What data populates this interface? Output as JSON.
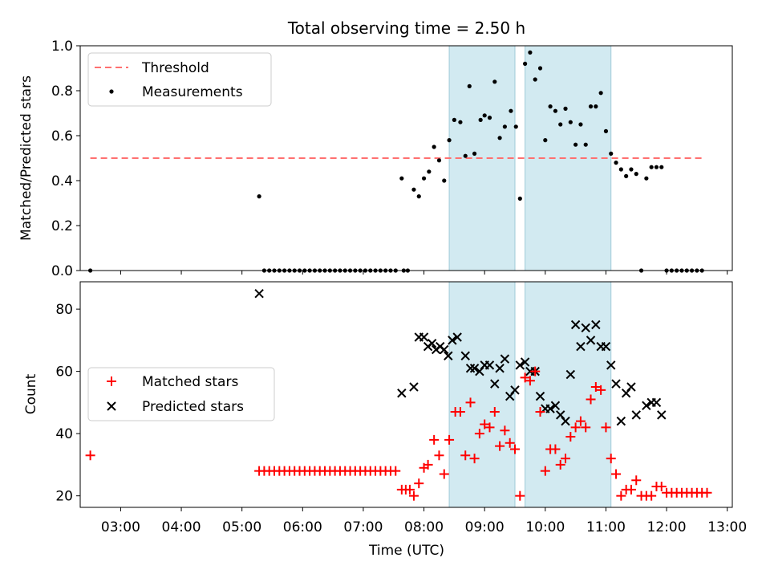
{
  "figure_title": "Total observing time = 2.50 h",
  "colors": {
    "threshold": "#ff7070",
    "measurement": "#000000",
    "matched": "#ff0000",
    "predicted": "#000000",
    "shade": "#add8e6"
  },
  "chart_data": [
    {
      "type": "scatter",
      "panel": "top",
      "ylabel": "Matched/Predicted stars",
      "ylim": [
        0,
        1.0
      ],
      "yticks": [
        0.0,
        0.2,
        0.4,
        0.6,
        0.8,
        1.0
      ],
      "ytick_labels": [
        "0.0",
        "0.2",
        "0.4",
        "0.6",
        "0.8",
        "1.0"
      ],
      "xlim": [
        "02:20",
        "13:05"
      ],
      "grid": false,
      "legend": "top-left",
      "shaded_intervals": [
        [
          "08:25",
          "09:30"
        ],
        [
          "09:40",
          "11:05"
        ]
      ],
      "threshold": {
        "name": "Threshold",
        "y": 0.5,
        "x_range": [
          "02:30",
          "12:35"
        ]
      },
      "series": [
        {
          "name": "Measurements",
          "marker": "dot",
          "points": [
            [
              "02:30",
              0.0
            ],
            [
              "05:17",
              0.33
            ],
            [
              "05:22",
              0.0
            ],
            [
              "05:27",
              0.0
            ],
            [
              "05:32",
              0.0
            ],
            [
              "05:37",
              0.0
            ],
            [
              "05:42",
              0.0
            ],
            [
              "05:47",
              0.0
            ],
            [
              "05:52",
              0.0
            ],
            [
              "05:57",
              0.0
            ],
            [
              "06:02",
              0.0
            ],
            [
              "06:07",
              0.0
            ],
            [
              "06:12",
              0.0
            ],
            [
              "06:17",
              0.0
            ],
            [
              "06:22",
              0.0
            ],
            [
              "06:27",
              0.0
            ],
            [
              "06:32",
              0.0
            ],
            [
              "06:37",
              0.0
            ],
            [
              "06:42",
              0.0
            ],
            [
              "06:47",
              0.0
            ],
            [
              "06:52",
              0.0
            ],
            [
              "06:57",
              0.0
            ],
            [
              "07:02",
              0.0
            ],
            [
              "07:07",
              0.0
            ],
            [
              "07:12",
              0.0
            ],
            [
              "07:17",
              0.0
            ],
            [
              "07:22",
              0.0
            ],
            [
              "07:27",
              0.0
            ],
            [
              "07:32",
              0.0
            ],
            [
              "07:40",
              0.0
            ],
            [
              "07:44",
              0.0
            ],
            [
              "07:38",
              0.41
            ],
            [
              "07:50",
              0.36
            ],
            [
              "07:55",
              0.33
            ],
            [
              "08:00",
              0.41
            ],
            [
              "08:05",
              0.44
            ],
            [
              "08:10",
              0.55
            ],
            [
              "08:15",
              0.49
            ],
            [
              "08:20",
              0.4
            ],
            [
              "08:25",
              0.58
            ],
            [
              "08:30",
              0.67
            ],
            [
              "08:36",
              0.66
            ],
            [
              "08:41",
              0.51
            ],
            [
              "08:45",
              0.82
            ],
            [
              "08:50",
              0.52
            ],
            [
              "08:56",
              0.67
            ],
            [
              "09:00",
              0.69
            ],
            [
              "09:05",
              0.68
            ],
            [
              "09:10",
              0.84
            ],
            [
              "09:15",
              0.59
            ],
            [
              "09:20",
              0.64
            ],
            [
              "09:26",
              0.71
            ],
            [
              "09:31",
              0.64
            ],
            [
              "09:35",
              0.32
            ],
            [
              "09:40",
              0.92
            ],
            [
              "09:45",
              0.97
            ],
            [
              "09:50",
              0.85
            ],
            [
              "09:55",
              0.9
            ],
            [
              "10:00",
              0.58
            ],
            [
              "10:05",
              0.73
            ],
            [
              "10:10",
              0.71
            ],
            [
              "10:15",
              0.65
            ],
            [
              "10:20",
              0.72
            ],
            [
              "10:25",
              0.66
            ],
            [
              "10:30",
              0.56
            ],
            [
              "10:35",
              0.65
            ],
            [
              "10:40",
              0.56
            ],
            [
              "10:45",
              0.73
            ],
            [
              "10:50",
              0.73
            ],
            [
              "10:55",
              0.79
            ],
            [
              "11:00",
              0.62
            ],
            [
              "11:05",
              0.52
            ],
            [
              "11:10",
              0.48
            ],
            [
              "11:15",
              0.45
            ],
            [
              "11:20",
              0.42
            ],
            [
              "11:25",
              0.45
            ],
            [
              "11:30",
              0.43
            ],
            [
              "11:35",
              0.0
            ],
            [
              "11:40",
              0.41
            ],
            [
              "11:45",
              0.46
            ],
            [
              "11:50",
              0.46
            ],
            [
              "11:55",
              0.46
            ],
            [
              "12:00",
              0.0
            ],
            [
              "12:05",
              0.0
            ],
            [
              "12:10",
              0.0
            ],
            [
              "12:15",
              0.0
            ],
            [
              "12:20",
              0.0
            ],
            [
              "12:25",
              0.0
            ],
            [
              "12:30",
              0.0
            ],
            [
              "12:35",
              0.0
            ]
          ]
        }
      ]
    },
    {
      "type": "scatter",
      "panel": "bottom",
      "xlabel": "Time (UTC)",
      "ylabel": "Count",
      "ylim": [
        16.3,
        88.8
      ],
      "yticks": [
        20,
        40,
        60,
        80
      ],
      "ytick_labels": [
        "20",
        "40",
        "60",
        "80"
      ],
      "xlim": [
        "02:20",
        "13:05"
      ],
      "xticks": [
        "03:00",
        "04:00",
        "05:00",
        "06:00",
        "07:00",
        "08:00",
        "09:00",
        "10:00",
        "11:00",
        "12:00",
        "13:00"
      ],
      "xtick_labels": [
        "03:00",
        "04:00",
        "05:00",
        "06:00",
        "07:00",
        "08:00",
        "09:00",
        "10:00",
        "11:00",
        "12:00",
        "13:00"
      ],
      "grid": false,
      "legend": "center-left",
      "shaded_intervals": [
        [
          "08:25",
          "09:30"
        ],
        [
          "09:40",
          "11:05"
        ]
      ],
      "series": [
        {
          "name": "Matched stars",
          "marker": "plus",
          "points": [
            [
              "02:30",
              33
            ],
            [
              "05:17",
              28
            ],
            [
              "05:22",
              28
            ],
            [
              "05:27",
              28
            ],
            [
              "05:32",
              28
            ],
            [
              "05:37",
              28
            ],
            [
              "05:42",
              28
            ],
            [
              "05:47",
              28
            ],
            [
              "05:52",
              28
            ],
            [
              "05:57",
              28
            ],
            [
              "06:02",
              28
            ],
            [
              "06:07",
              28
            ],
            [
              "06:12",
              28
            ],
            [
              "06:17",
              28
            ],
            [
              "06:22",
              28
            ],
            [
              "06:27",
              28
            ],
            [
              "06:32",
              28
            ],
            [
              "06:37",
              28
            ],
            [
              "06:42",
              28
            ],
            [
              "06:47",
              28
            ],
            [
              "06:52",
              28
            ],
            [
              "06:57",
              28
            ],
            [
              "07:02",
              28
            ],
            [
              "07:07",
              28
            ],
            [
              "07:12",
              28
            ],
            [
              "07:17",
              28
            ],
            [
              "07:22",
              28
            ],
            [
              "07:27",
              28
            ],
            [
              "07:32",
              28
            ],
            [
              "07:38",
              22
            ],
            [
              "07:42",
              22
            ],
            [
              "07:46",
              22
            ],
            [
              "07:50",
              20
            ],
            [
              "07:55",
              24
            ],
            [
              "08:00",
              29
            ],
            [
              "08:04",
              30
            ],
            [
              "08:10",
              38
            ],
            [
              "08:15",
              33
            ],
            [
              "08:20",
              27
            ],
            [
              "08:25",
              38
            ],
            [
              "08:31",
              47
            ],
            [
              "08:36",
              47
            ],
            [
              "08:41",
              33
            ],
            [
              "08:46",
              50
            ],
            [
              "08:50",
              32
            ],
            [
              "08:55",
              40
            ],
            [
              "09:00",
              43
            ],
            [
              "09:05",
              42
            ],
            [
              "09:10",
              47
            ],
            [
              "09:15",
              36
            ],
            [
              "09:20",
              41
            ],
            [
              "09:25",
              37
            ],
            [
              "09:30",
              35
            ],
            [
              "09:35",
              20
            ],
            [
              "09:40",
              58
            ],
            [
              "09:45",
              57
            ],
            [
              "09:50",
              60
            ],
            [
              "09:55",
              47
            ],
            [
              "10:00",
              28
            ],
            [
              "10:05",
              35
            ],
            [
              "10:10",
              35
            ],
            [
              "10:15",
              30
            ],
            [
              "10:20",
              32
            ],
            [
              "10:25",
              39
            ],
            [
              "10:30",
              42
            ],
            [
              "10:35",
              44
            ],
            [
              "10:40",
              42
            ],
            [
              "10:45",
              51
            ],
            [
              "10:50",
              55
            ],
            [
              "10:55",
              54
            ],
            [
              "11:00",
              42
            ],
            [
              "11:05",
              32
            ],
            [
              "11:10",
              27
            ],
            [
              "11:15",
              20
            ],
            [
              "11:20",
              22
            ],
            [
              "11:25",
              22
            ],
            [
              "11:30",
              25
            ],
            [
              "11:35",
              20
            ],
            [
              "11:40",
              20
            ],
            [
              "11:45",
              20
            ],
            [
              "11:50",
              23
            ],
            [
              "11:55",
              23
            ],
            [
              "12:00",
              21
            ],
            [
              "12:05",
              21
            ],
            [
              "12:10",
              21
            ],
            [
              "12:15",
              21
            ],
            [
              "12:20",
              21
            ],
            [
              "12:25",
              21
            ],
            [
              "12:30",
              21
            ],
            [
              "12:35",
              21
            ],
            [
              "12:40",
              21
            ]
          ]
        },
        {
          "name": "Predicted stars",
          "marker": "x",
          "points": [
            [
              "05:17",
              85
            ],
            [
              "07:38",
              53
            ],
            [
              "07:50",
              55
            ],
            [
              "07:55",
              71
            ],
            [
              "08:00",
              71
            ],
            [
              "08:04",
              68
            ],
            [
              "08:08",
              69
            ],
            [
              "08:12",
              67
            ],
            [
              "08:16",
              68
            ],
            [
              "08:20",
              67
            ],
            [
              "08:24",
              65
            ],
            [
              "08:28",
              70
            ],
            [
              "08:33",
              71
            ],
            [
              "08:41",
              65
            ],
            [
              "08:46",
              61
            ],
            [
              "08:50",
              61
            ],
            [
              "08:55",
              60
            ],
            [
              "09:00",
              62
            ],
            [
              "09:05",
              62
            ],
            [
              "09:10",
              56
            ],
            [
              "09:15",
              61
            ],
            [
              "09:20",
              64
            ],
            [
              "09:25",
              52
            ],
            [
              "09:30",
              54
            ],
            [
              "09:35",
              62
            ],
            [
              "09:40",
              63
            ],
            [
              "09:45",
              60
            ],
            [
              "09:50",
              60
            ],
            [
              "09:55",
              52
            ],
            [
              "10:00",
              48
            ],
            [
              "10:05",
              48
            ],
            [
              "10:10",
              49
            ],
            [
              "10:15",
              46
            ],
            [
              "10:20",
              44
            ],
            [
              "10:25",
              59
            ],
            [
              "10:30",
              75
            ],
            [
              "10:35",
              68
            ],
            [
              "10:40",
              74
            ],
            [
              "10:45",
              70
            ],
            [
              "10:50",
              75
            ],
            [
              "10:55",
              68
            ],
            [
              "11:00",
              68
            ],
            [
              "11:05",
              62
            ],
            [
              "11:10",
              56
            ],
            [
              "11:15",
              44
            ],
            [
              "11:20",
              53
            ],
            [
              "11:25",
              55
            ],
            [
              "11:30",
              46
            ],
            [
              "11:40",
              49
            ],
            [
              "11:45",
              50
            ],
            [
              "11:50",
              50
            ],
            [
              "11:55",
              46
            ]
          ]
        }
      ]
    }
  ]
}
